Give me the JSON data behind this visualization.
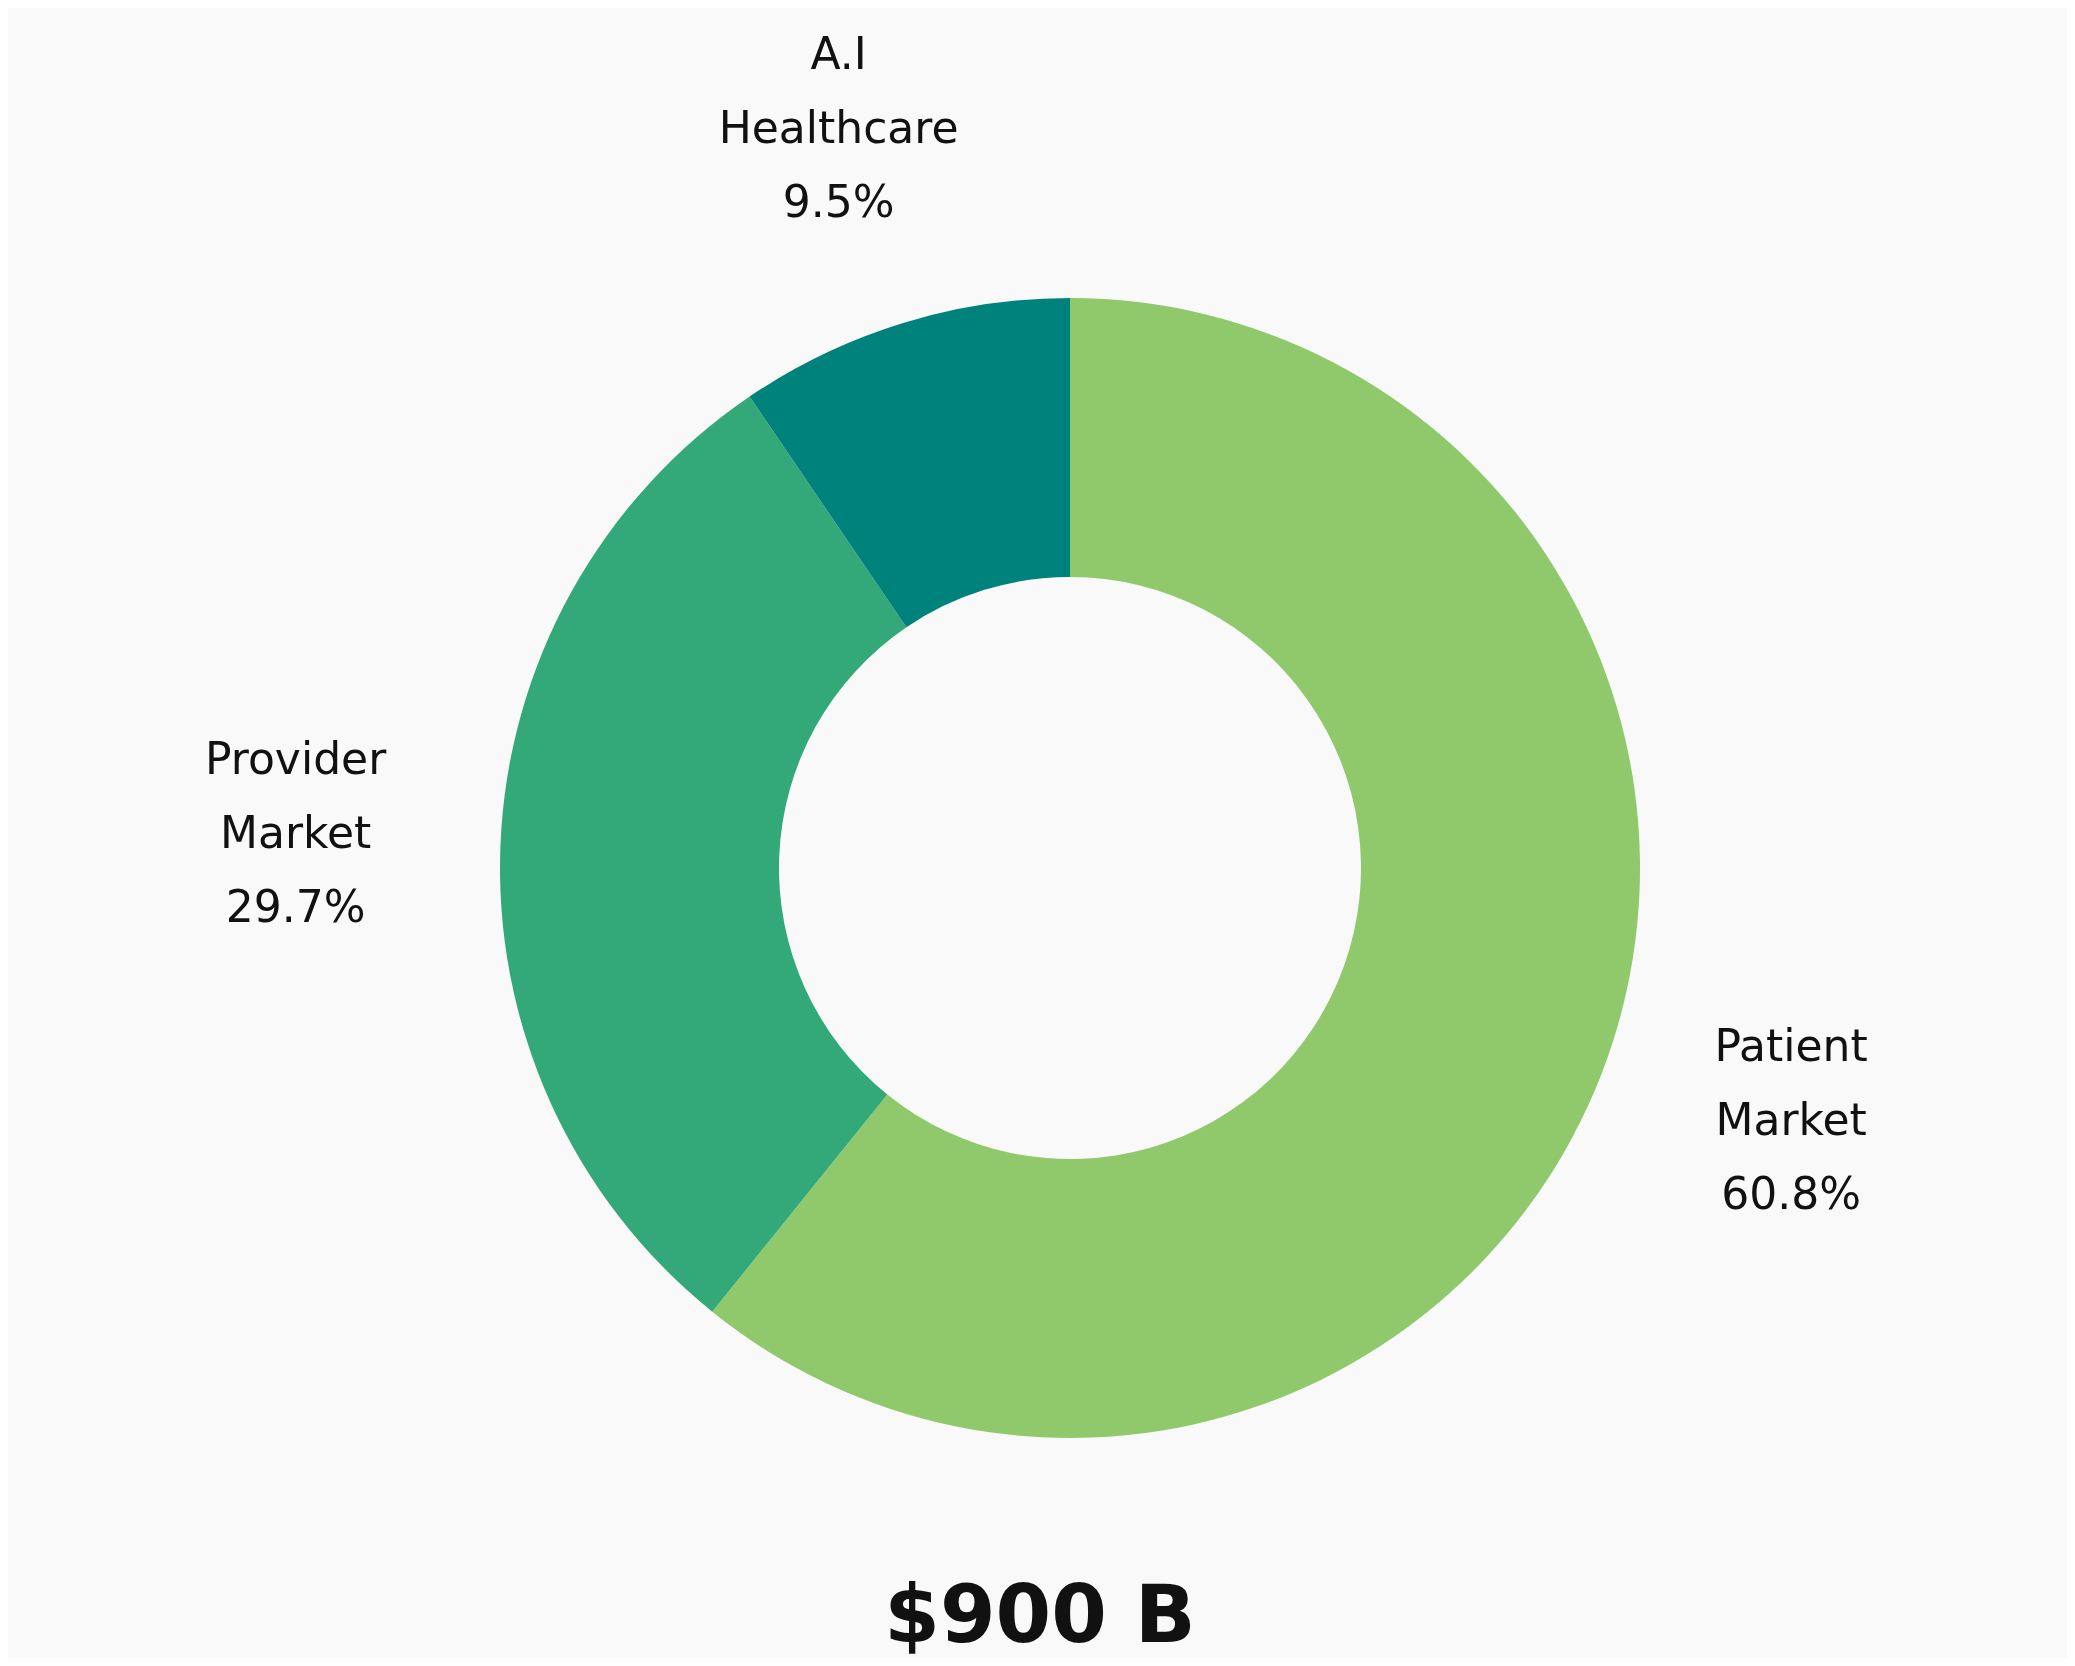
{
  "chart_data": {
    "type": "donut",
    "title": "$900 B",
    "categories": [
      "Patient Market",
      "Provider Market",
      "A.I Healthcare"
    ],
    "values": [
      60.8,
      29.7,
      9.5
    ],
    "colors": [
      "#8fc96b",
      "#33a97a",
      "#00827c"
    ],
    "value_labels": [
      "60.8%",
      "29.7%",
      "9.5%"
    ],
    "legend": false
  }
}
